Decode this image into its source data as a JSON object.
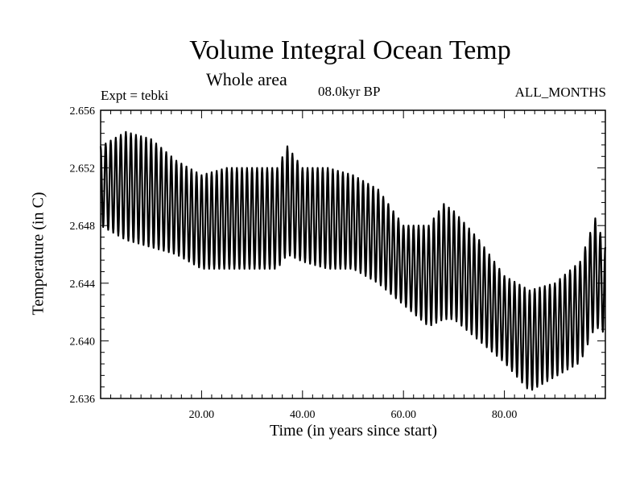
{
  "chart_data": {
    "type": "line",
    "title": "Volume Integral Ocean Temp",
    "subtitle": "Whole area",
    "left_note": "Expt = tebki",
    "center_note": "08.0kyr BP",
    "right_note": "ALL_MONTHS",
    "xlabel": "Time (in years since start)",
    "ylabel": "Temperature (in C)",
    "xlim": [
      0,
      100
    ],
    "ylim": [
      2.636,
      2.656
    ],
    "xticks": [
      20,
      40,
      60,
      80
    ],
    "xtick_labels": [
      "20.00",
      "40.00",
      "60.00",
      "80.00"
    ],
    "yticks": [
      2.636,
      2.64,
      2.644,
      2.648,
      2.652,
      2.656
    ],
    "ytick_labels": [
      "2.636",
      "2.640",
      "2.644",
      "2.648",
      "2.652",
      "2.656"
    ],
    "series": [
      {
        "name": "temperature",
        "description": "annual cycle envelope (peak/trough per year)",
        "x": [
          0,
          5,
          10,
          15,
          20,
          25,
          30,
          35,
          37,
          40,
          45,
          50,
          55,
          60,
          65,
          68,
          70,
          75,
          80,
          85,
          90,
          95,
          98,
          100
        ],
        "max": [
          2.6535,
          2.6545,
          2.654,
          2.6525,
          2.6515,
          2.652,
          2.652,
          2.652,
          2.6535,
          2.652,
          2.652,
          2.6515,
          2.6505,
          2.648,
          2.648,
          2.6495,
          2.649,
          2.647,
          2.6445,
          2.6435,
          2.644,
          2.6455,
          2.6485,
          2.6465
        ],
        "min": [
          2.648,
          2.647,
          2.6465,
          2.646,
          2.645,
          2.645,
          2.645,
          2.645,
          2.646,
          2.6455,
          2.645,
          2.645,
          2.644,
          2.6425,
          2.641,
          2.6415,
          2.6415,
          2.64,
          2.6385,
          2.6365,
          2.6375,
          2.6385,
          2.641,
          2.6405
        ]
      }
    ]
  }
}
